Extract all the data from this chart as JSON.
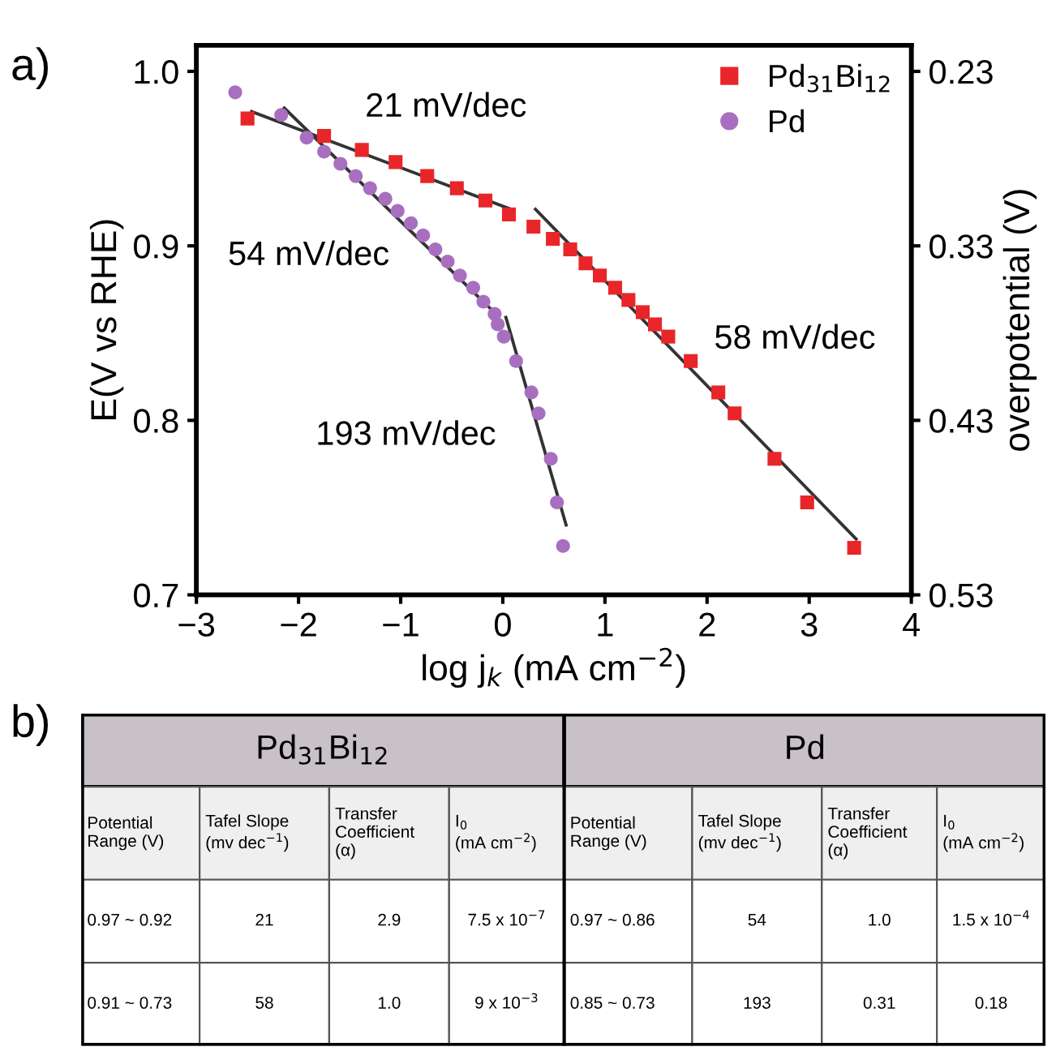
{
  "chart_data": [
    {
      "type": "scatter",
      "title": "a)",
      "xlabel": "log j$_{k}$ (mA cm$^{−2}$)",
      "ylabel": "E(V vs RHE)",
      "y2label": "overpotential (V)",
      "xlim": [
        -3,
        4
      ],
      "xticks": [
        {
          "value": -3,
          "label": "−3"
        },
        {
          "value": -2,
          "label": "−2"
        },
        {
          "value": -1,
          "label": "−1"
        },
        0,
        1,
        2,
        3,
        4
      ],
      "ylim": [
        0.7,
        1.015
      ],
      "yticks": [
        0.7,
        0.8,
        0.9,
        {
          "value": 1,
          "label": "1.0"
        }
      ],
      "y2lim": [
        0.53,
        0.215
      ],
      "y2ticks": [
        0.23,
        0.33,
        0.43,
        0.53
      ],
      "legend": "top right",
      "grid": false,
      "series": [
        {
          "name": "Pd$_{31}$Bi$_{12}$",
          "type": "scatter",
          "marker": "square",
          "color": "#e8262a",
          "x": [
            -2.5,
            -1.75,
            -1.38,
            -1.05,
            -0.74,
            -0.45,
            -0.17,
            0.06,
            0.3,
            0.49,
            0.66,
            0.81,
            0.95,
            1.1,
            1.23,
            1.37,
            1.49,
            1.62,
            1.84,
            2.11,
            2.27,
            2.66,
            2.98,
            3.44
          ],
          "values": [
            0.973,
            0.963,
            0.955,
            0.948,
            0.94,
            0.933,
            0.926,
            0.918,
            0.911,
            0.904,
            0.898,
            0.89,
            0.883,
            0.876,
            0.869,
            0.862,
            0.855,
            0.848,
            0.834,
            0.816,
            0.804,
            0.778,
            0.753,
            0.727
          ]
        },
        {
          "name": "Pd",
          "type": "scatter",
          "marker": "circle",
          "color": "#a86fc0",
          "x": [
            -2.62,
            -2.17,
            -1.92,
            -1.75,
            -1.59,
            -1.44,
            -1.3,
            -1.15,
            -1.03,
            -0.9,
            -0.78,
            -0.66,
            -0.54,
            -0.42,
            -0.29,
            -0.19,
            -0.08,
            -0.05,
            0.01,
            0.13,
            0.28,
            0.35,
            0.47,
            0.53,
            0.59
          ],
          "values": [
            0.988,
            0.975,
            0.962,
            0.954,
            0.947,
            0.94,
            0.933,
            0.927,
            0.92,
            0.913,
            0.906,
            0.898,
            0.891,
            0.883,
            0.876,
            0.868,
            0.861,
            0.855,
            0.848,
            0.834,
            0.816,
            0.804,
            0.778,
            0.753,
            0.728
          ]
        },
        {
          "type": "line",
          "marker": "none",
          "line_style": "solid",
          "color": "#333333",
          "x": [
            -2.46,
            0.08
          ],
          "values": [
            0.977,
            0.921
          ]
        },
        {
          "type": "line",
          "marker": "none",
          "line_style": "solid",
          "color": "#333333",
          "x": [
            0.32,
            3.46
          ],
          "values": [
            0.921,
            0.732
          ]
        },
        {
          "type": "line",
          "marker": "none",
          "line_style": "solid",
          "color": "#333333",
          "x": [
            -2.14,
            -0.05
          ],
          "values": [
            0.979,
            0.86
          ]
        },
        {
          "type": "line",
          "marker": "none",
          "line_style": "solid",
          "color": "#333333",
          "x": [
            0.03,
            0.62
          ],
          "values": [
            0.859,
            0.74
          ]
        }
      ],
      "annotations": [
        "21 mV/dec",
        "54 mV/dec",
        "193 mV/dec",
        "58 mV/dec"
      ]
    },
    {
      "type": "other",
      "title": "b)",
      "annotations": [
        "Pd$_{31}$Bi$_{12}$",
        "Pd",
        "Potential\nRange (V)",
        "Tafel Slope\n(mv dec$^{−1}$)",
        "Transfer\nCoefficient\n(α)",
        "I$_{0}$\n(mA cm$^{−2}$)",
        "Potential\nRange (V)",
        "Tafel Slope\n(mv dec$^{−1}$)",
        "Transfer\nCoefficient\n(α)",
        "I$_{0}$\n(mA cm$^{−2}$)",
        "0.97 ~ 0.92",
        "21",
        "2.9",
        "7.5 x 10$^{−7}$",
        "0.97 ~ 0.86",
        "54",
        "1.0",
        "1.5 x 10$^{−4}$",
        "0.91 ~ 0.73",
        "58",
        "1.0",
        "9 x 10$^{−3}$",
        "0.85 ~ 0.73",
        "193",
        "0.31",
        "0.18"
      ]
    }
  ]
}
